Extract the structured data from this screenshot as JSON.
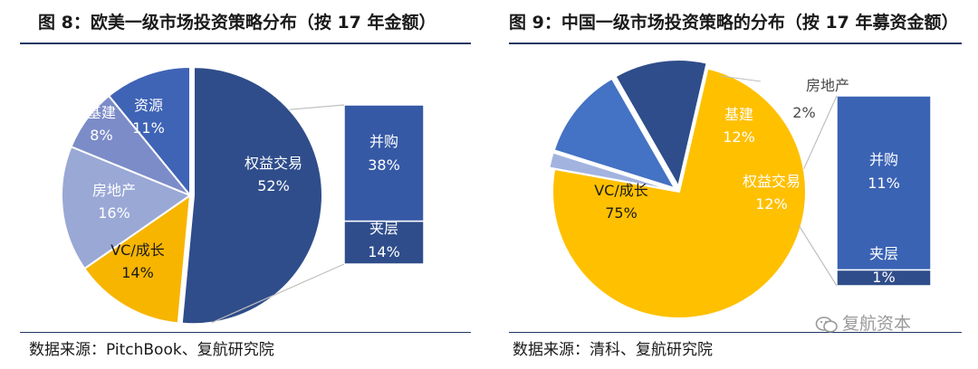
{
  "chart_data": [
    {
      "type": "pie",
      "title": "图 8：欧美一级市场投资策略分布（按 17 年金额）",
      "source": "数据来源：PitchBook、复航研究院",
      "slices": [
        {
          "label": "权益交易",
          "value": 52,
          "value_label": "52%",
          "color": "#2f4d8a"
        },
        {
          "label": "VC/成长",
          "value": 14,
          "value_label": "14%",
          "color": "#f7b500"
        },
        {
          "label": "房地产",
          "value": 16,
          "value_label": "16%",
          "color": "#9aa8d6"
        },
        {
          "label": "基建",
          "value": 8,
          "value_label": "8%",
          "color": "#7c8cc8"
        },
        {
          "label": "资源",
          "value": 11,
          "value_label": "11%",
          "color": "#3f63b5"
        }
      ],
      "breakout": {
        "of": "权益交易",
        "segments": [
          {
            "label": "并购",
            "value": 38,
            "value_label": "38%",
            "color": "#3659a6"
          },
          {
            "label": "夹层",
            "value": 14,
            "value_label": "14%",
            "color": "#2f4d8a"
          }
        ]
      }
    },
    {
      "type": "pie",
      "title": "图 9：中国一级市场投资策略的分布（按 17 年募资金额）",
      "source": "数据来源：清科、复航研究院",
      "slices": [
        {
          "label": "VC/成长",
          "value": 75,
          "value_label": "75%",
          "color": "#ffc000"
        },
        {
          "label": "房地产",
          "value": 2,
          "value_label": "2%",
          "color": "#a3b3e0"
        },
        {
          "label": "基建",
          "value": 12,
          "value_label": "12%",
          "color": "#4472c4"
        },
        {
          "label": "权益交易",
          "value": 12,
          "value_label": "12%",
          "color": "#2f4d8a"
        }
      ],
      "breakout": {
        "of": "权益交易",
        "segments": [
          {
            "label": "并购",
            "value": 11,
            "value_label": "11%",
            "color": "#3a63b4"
          },
          {
            "label": "夹层",
            "value": 1,
            "value_label": "1%",
            "color": "#2f4d8a"
          }
        ]
      }
    }
  ],
  "watermark": "复航资本"
}
